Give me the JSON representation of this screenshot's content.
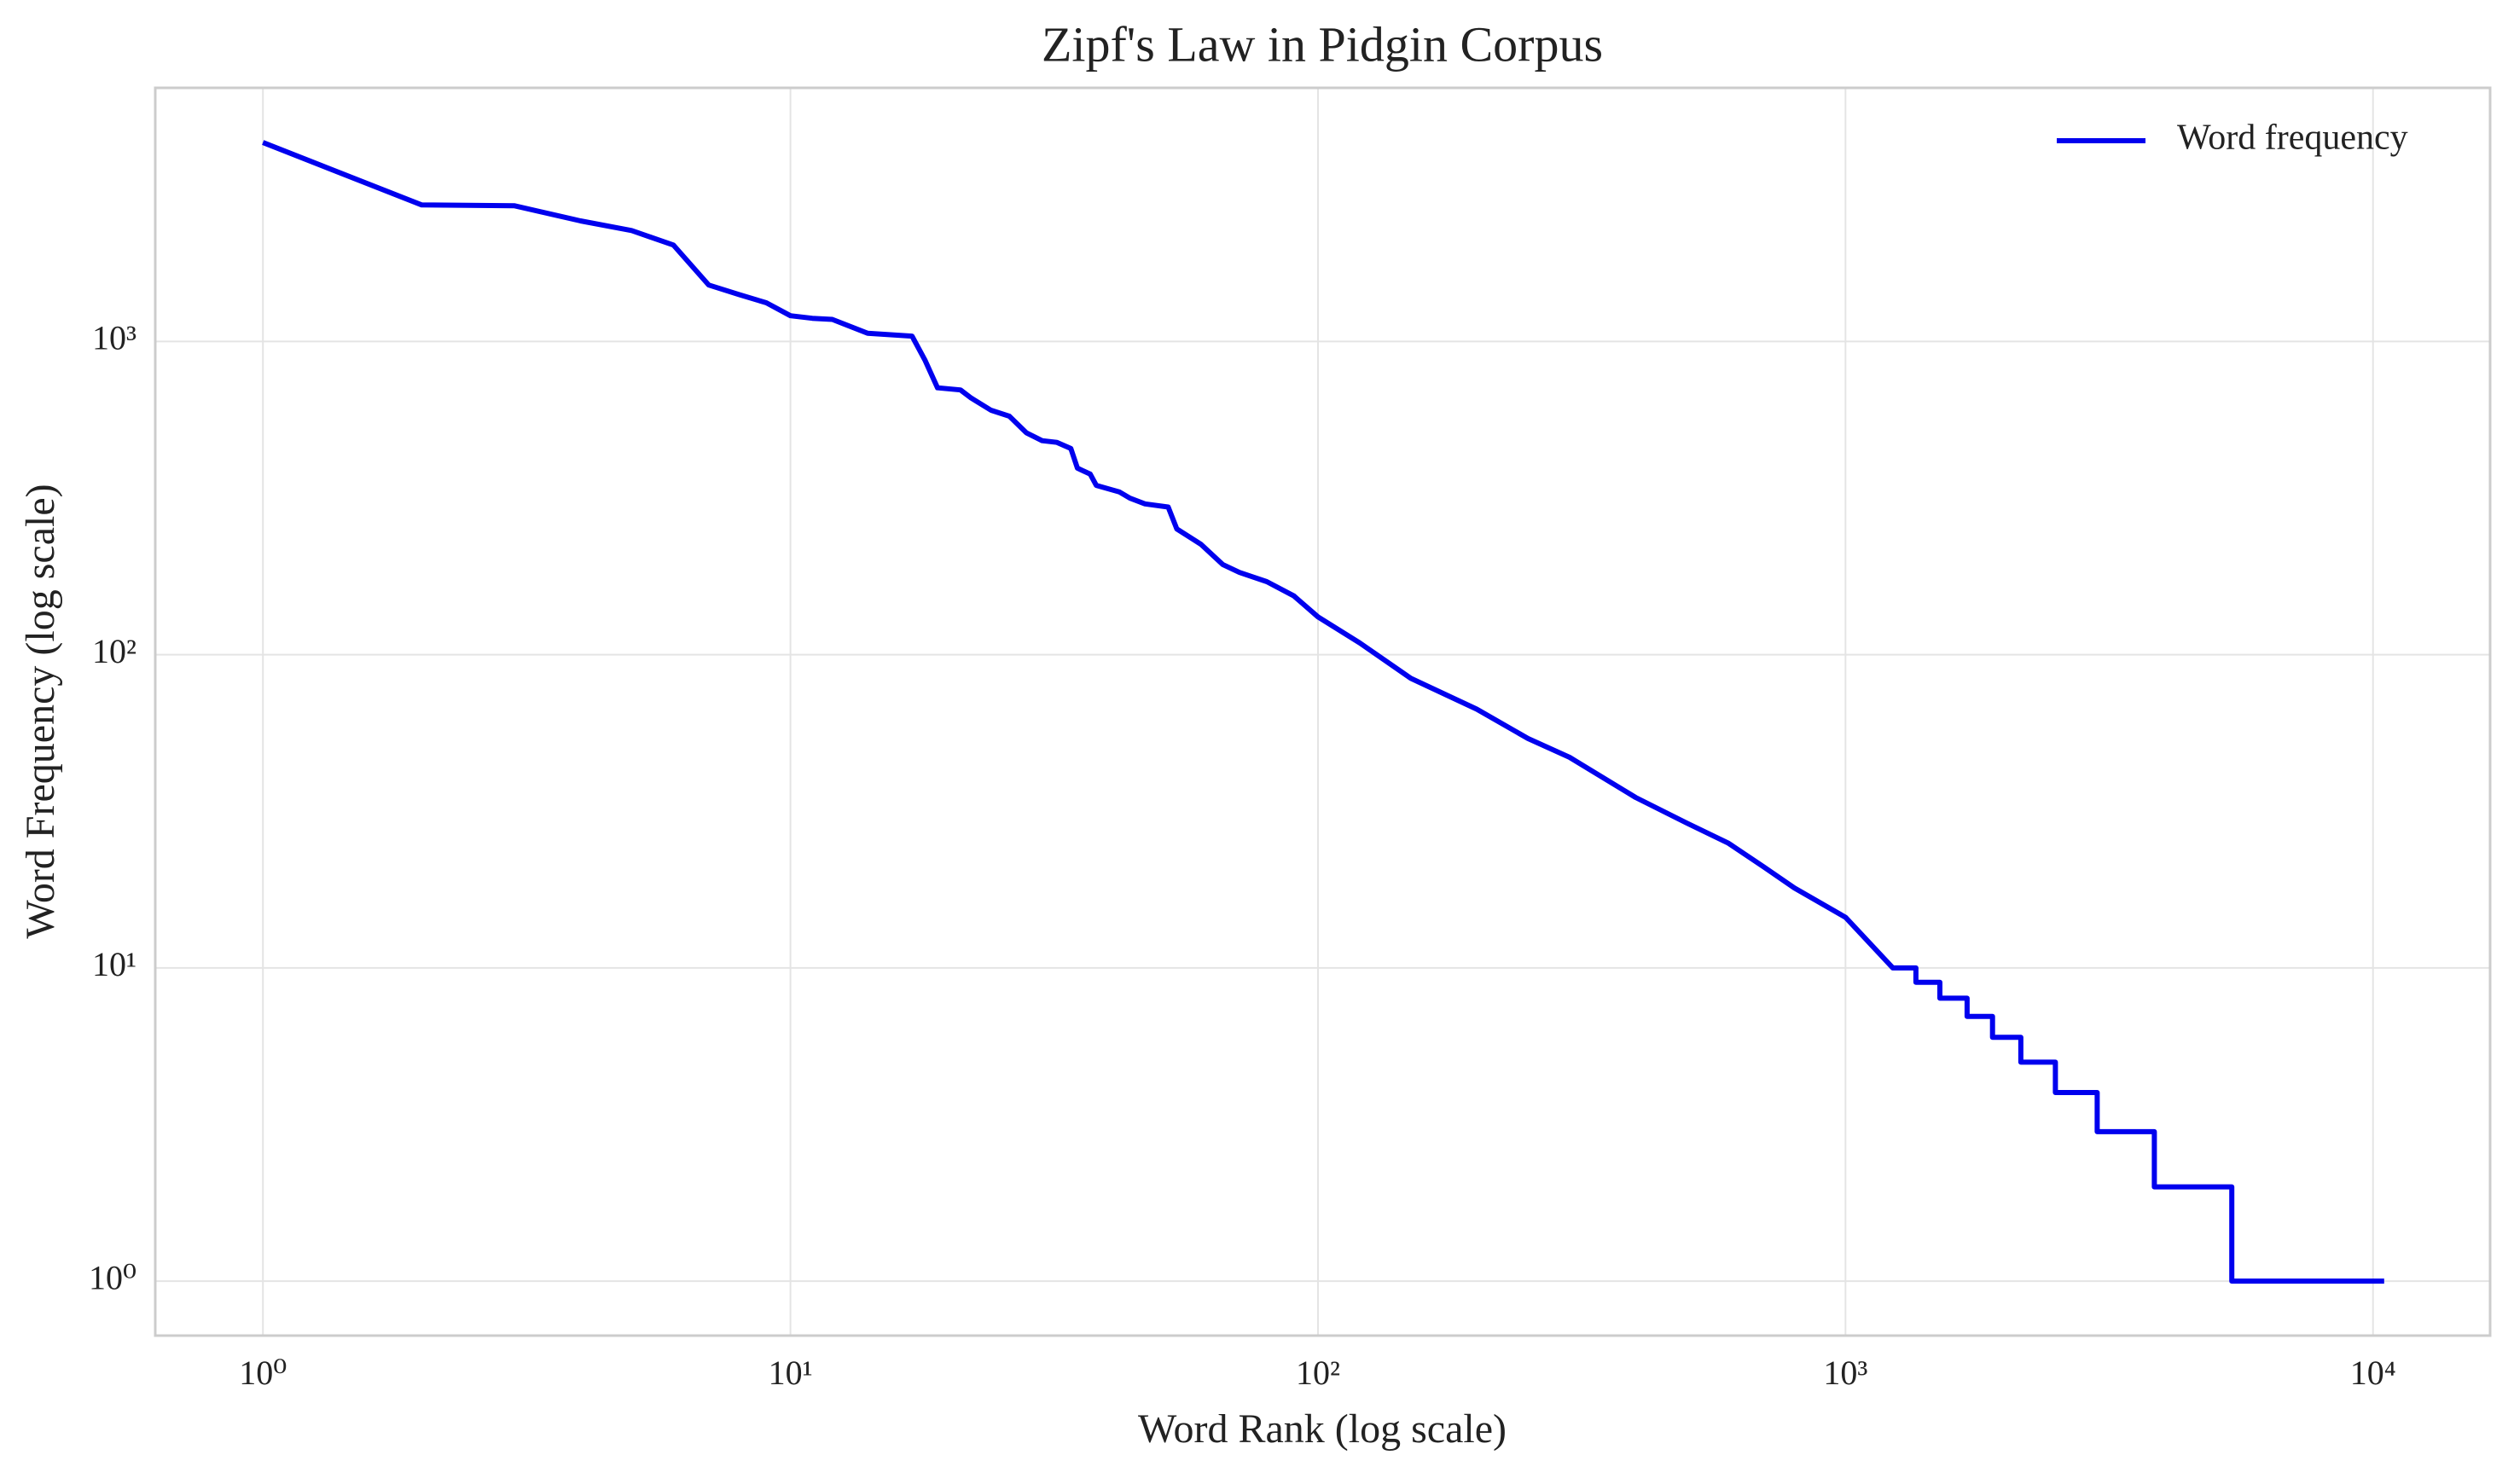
{
  "chart_data": {
    "type": "line",
    "title": "Zipf's Law in Pidgin Corpus",
    "x_label": "Word Rank (log scale)",
    "y_label": "Word Frequency (log scale)",
    "x_scale": "log",
    "y_scale": "log",
    "grid": true,
    "legend": "upper right",
    "xlim": [
      0.625,
      16672
    ],
    "ylim": [
      0.67,
      6450
    ],
    "xticks": [
      {
        "value": 1,
        "label": "10⁰"
      },
      {
        "value": 10,
        "label": "10¹"
      },
      {
        "value": 100,
        "label": "10²"
      },
      {
        "value": 1000,
        "label": "10³"
      },
      {
        "value": 10000,
        "label": "10⁴"
      }
    ],
    "yticks": [
      {
        "value": 1,
        "label": "10⁰"
      },
      {
        "value": 10,
        "label": "10¹"
      },
      {
        "value": 100,
        "label": "10²"
      },
      {
        "value": 1000,
        "label": "10³"
      }
    ],
    "x": [
      1,
      2,
      3,
      4,
      5,
      6,
      7,
      8,
      9,
      10,
      11,
      12,
      14,
      17,
      18,
      19,
      21,
      22,
      24,
      26,
      28,
      30,
      32,
      34,
      35,
      37,
      38,
      42,
      44,
      47,
      52,
      54,
      60,
      66,
      71,
      80,
      90,
      100,
      120,
      150,
      200,
      250,
      300,
      400,
      500,
      600,
      700,
      800,
      1000,
      1230,
      1360,
      1360,
      1510,
      1510,
      1700,
      1700,
      1900,
      1900,
      2150,
      2150,
      2500,
      2500,
      3000,
      3000,
      3850,
      3850,
      5400,
      5400,
      10500
    ],
    "series": [
      {
        "name": "Word frequency",
        "color": "#0000ee",
        "values": [
          4316,
          2727,
          2710,
          2425,
          2260,
          2031,
          1514,
          1410,
          1329,
          1208,
          1185,
          1176,
          1062,
          1040,
          869,
          711,
          700,
          660,
          603,
          577,
          511,
          482,
          476,
          455,
          394,
          377,
          347,
          331,
          316,
          303,
          296,
          252,
          225,
          194,
          183,
          171,
          154,
          132,
          109,
          84,
          67,
          54,
          47,
          35,
          29,
          25,
          21,
          18,
          14.5,
          10,
          10,
          9,
          9,
          8,
          8,
          7,
          7,
          6,
          6,
          5,
          5,
          4,
          4,
          3,
          3,
          2,
          2,
          1,
          1
        ]
      }
    ]
  }
}
